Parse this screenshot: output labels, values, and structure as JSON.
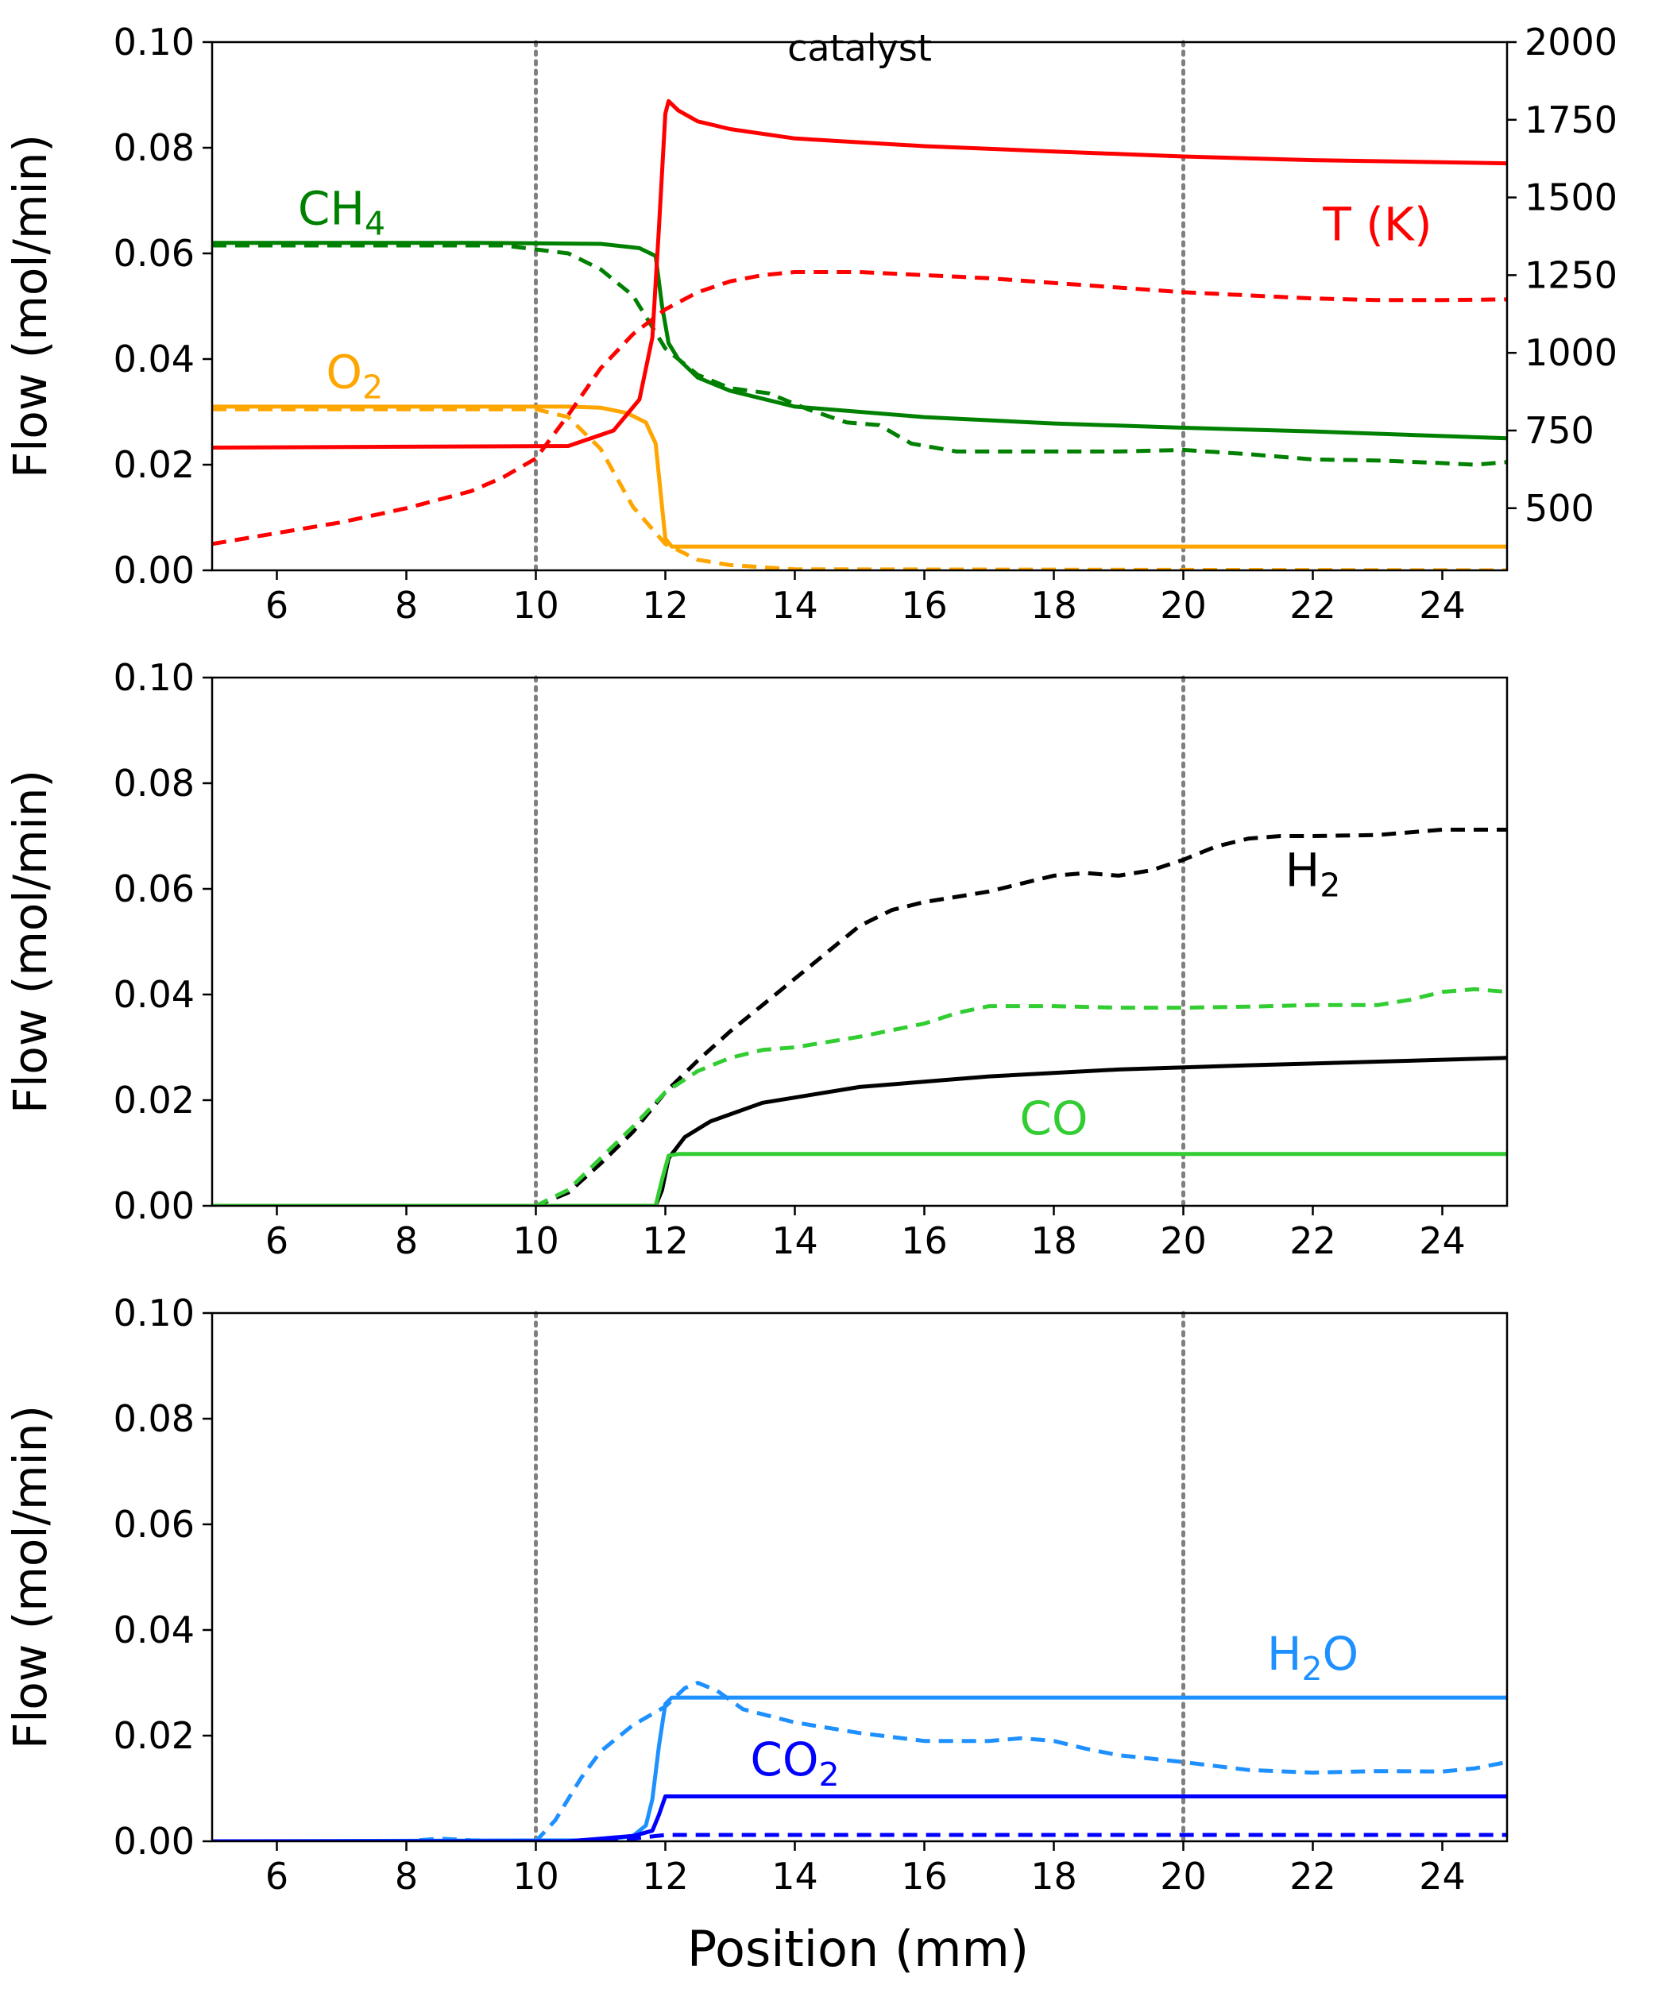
{
  "figure": {
    "xlabel": "Position (mm)",
    "ylabel": "Flow (mol/min)"
  },
  "chart_data": [
    {
      "type": "line",
      "panel": "top",
      "xlabel": "",
      "ylabel": "Flow (mol/min)",
      "xlim": [
        5,
        25
      ],
      "ylim": [
        0,
        0.1
      ],
      "xticks": [
        "6",
        "8",
        "10",
        "12",
        "14",
        "16",
        "18",
        "20",
        "22",
        "24"
      ],
      "yticks": [
        "0.00",
        "0.02",
        "0.04",
        "0.06",
        "0.08",
        "0.10"
      ],
      "y2lim": [
        300,
        2000
      ],
      "y2ticks": [
        "500",
        "750",
        "1000",
        "1250",
        "1500",
        "1750",
        "2000"
      ],
      "vlines": [
        10,
        20
      ],
      "annotations": {
        "catalyst": "catalyst",
        "ch4": {
          "base": "CH",
          "sub": "4",
          "color": "#008000"
        },
        "o2": {
          "base": "O",
          "sub": "2",
          "color": "#FFA500"
        },
        "temp": {
          "base": "T (K)",
          "sub": "",
          "color": "#FF0000"
        }
      },
      "series": [
        {
          "color": "#008000",
          "dash": false,
          "axis": "left",
          "x": [
            5,
            9,
            11,
            11.6,
            11.85,
            11.95,
            12.05,
            12.2,
            12.5,
            13,
            14,
            16,
            18,
            20,
            22,
            25
          ],
          "y": [
            0.062,
            0.062,
            0.0618,
            0.061,
            0.0595,
            0.05,
            0.043,
            0.04,
            0.0365,
            0.034,
            0.031,
            0.029,
            0.0278,
            0.027,
            0.0263,
            0.025
          ]
        },
        {
          "color": "#008000",
          "dash": true,
          "axis": "left",
          "x": [
            5,
            9.5,
            10.5,
            11,
            11.5,
            12,
            12.5,
            13,
            13.6,
            14.2,
            14.8,
            15.3,
            15.8,
            16.5,
            17.5,
            19,
            20,
            21,
            22,
            23,
            24,
            24.5,
            25
          ],
          "y": [
            0.0615,
            0.0615,
            0.06,
            0.057,
            0.052,
            0.042,
            0.037,
            0.0345,
            0.0335,
            0.0305,
            0.028,
            0.0275,
            0.024,
            0.0225,
            0.0225,
            0.0225,
            0.0228,
            0.022,
            0.021,
            0.0208,
            0.0203,
            0.02,
            0.0205
          ]
        },
        {
          "color": "#FFA500",
          "dash": false,
          "axis": "left",
          "x": [
            5,
            10.5,
            11,
            11.4,
            11.7,
            11.85,
            11.95,
            12,
            12.1,
            25
          ],
          "y": [
            0.031,
            0.031,
            0.0308,
            0.0298,
            0.028,
            0.024,
            0.012,
            0.006,
            0.0045,
            0.0045
          ]
        },
        {
          "color": "#FFA500",
          "dash": true,
          "axis": "left",
          "x": [
            5,
            10,
            10.5,
            11,
            11.5,
            12,
            12.5,
            13,
            14,
            25
          ],
          "y": [
            0.0305,
            0.0305,
            0.029,
            0.023,
            0.012,
            0.005,
            0.002,
            0.001,
            0.0002,
            0.0
          ]
        },
        {
          "color": "#FF0000",
          "dash": false,
          "axis": "right",
          "x": [
            5,
            10.5,
            11.2,
            11.6,
            11.8,
            11.9,
            12.0,
            12.05,
            12.2,
            12.5,
            13,
            14,
            16,
            18,
            20,
            22,
            25
          ],
          "y": [
            695,
            700,
            750,
            850,
            1050,
            1400,
            1770,
            1810,
            1780,
            1745,
            1720,
            1690,
            1665,
            1648,
            1632,
            1620,
            1610
          ]
        },
        {
          "color": "#FF0000",
          "dash": true,
          "axis": "right",
          "x": [
            5,
            6,
            7,
            8,
            9,
            9.5,
            10,
            10.5,
            11,
            11.5,
            12,
            12.5,
            13,
            13.5,
            14,
            15,
            16,
            17,
            18,
            19,
            20,
            21,
            22,
            23,
            24,
            25
          ],
          "y": [
            385,
            420,
            455,
            500,
            555,
            600,
            660,
            800,
            950,
            1060,
            1140,
            1195,
            1230,
            1250,
            1260,
            1260,
            1250,
            1240,
            1225,
            1210,
            1195,
            1185,
            1175,
            1170,
            1170,
            1172
          ]
        }
      ]
    },
    {
      "type": "line",
      "panel": "middle",
      "xlabel": "",
      "ylabel": "Flow (mol/min)",
      "xlim": [
        5,
        25
      ],
      "ylim": [
        0,
        0.1
      ],
      "xticks": [
        "6",
        "8",
        "10",
        "12",
        "14",
        "16",
        "18",
        "20",
        "22",
        "24"
      ],
      "yticks": [
        "0.00",
        "0.02",
        "0.04",
        "0.06",
        "0.08",
        "0.10"
      ],
      "vlines": [
        10,
        20
      ],
      "annotations": {
        "h2": {
          "base": "H",
          "sub": "2",
          "color": "#000000"
        },
        "co": {
          "base": "CO",
          "sub": "",
          "color": "#32CD32"
        }
      },
      "series": [
        {
          "color": "#000000",
          "dash": false,
          "x": [
            5,
            11.85,
            11.95,
            12.05,
            12.3,
            12.7,
            13.5,
            15,
            17,
            19,
            21,
            23,
            25
          ],
          "y": [
            0,
            0,
            0.003,
            0.009,
            0.013,
            0.016,
            0.0195,
            0.0225,
            0.0245,
            0.0258,
            0.0266,
            0.0273,
            0.028
          ]
        },
        {
          "color": "#000000",
          "dash": true,
          "x": [
            5,
            10,
            10.5,
            11,
            11.5,
            12,
            12.5,
            13,
            13.5,
            14,
            14.5,
            15,
            15.5,
            16,
            16.5,
            17,
            17.5,
            18,
            18.5,
            19,
            19.5,
            20,
            20.5,
            21,
            21.5,
            22,
            23,
            24,
            25
          ],
          "y": [
            0,
            0,
            0.0025,
            0.008,
            0.014,
            0.0215,
            0.0275,
            0.033,
            0.038,
            0.043,
            0.048,
            0.053,
            0.056,
            0.0575,
            0.0585,
            0.0595,
            0.061,
            0.0625,
            0.063,
            0.0625,
            0.0635,
            0.0655,
            0.068,
            0.0695,
            0.07,
            0.07,
            0.0702,
            0.0712,
            0.0712
          ]
        },
        {
          "color": "#32CD32",
          "dash": false,
          "x": [
            5,
            11.85,
            11.95,
            12.05,
            12.2,
            25
          ],
          "y": [
            0,
            0,
            0.005,
            0.0095,
            0.0098,
            0.0098
          ]
        },
        {
          "color": "#32CD32",
          "dash": true,
          "x": [
            5,
            10,
            10.5,
            11,
            11.5,
            12,
            12.5,
            13,
            13.5,
            14,
            15,
            16,
            16.5,
            17,
            18,
            19,
            20,
            21,
            22,
            23,
            23.5,
            24,
            24.5,
            25
          ],
          "y": [
            0,
            0,
            0.003,
            0.009,
            0.015,
            0.0215,
            0.0255,
            0.028,
            0.0295,
            0.03,
            0.032,
            0.0345,
            0.0365,
            0.0378,
            0.0378,
            0.0375,
            0.0375,
            0.0377,
            0.038,
            0.038,
            0.039,
            0.0405,
            0.041,
            0.0405
          ]
        }
      ]
    },
    {
      "type": "line",
      "panel": "bottom",
      "xlabel": "Position (mm)",
      "ylabel": "Flow (mol/min)",
      "xlim": [
        5,
        25
      ],
      "ylim": [
        0,
        0.1
      ],
      "xticks": [
        "6",
        "8",
        "10",
        "12",
        "14",
        "16",
        "18",
        "20",
        "22",
        "24"
      ],
      "yticks": [
        "0.00",
        "0.02",
        "0.04",
        "0.06",
        "0.08",
        "0.10"
      ],
      "vlines": [
        10,
        20
      ],
      "annotations": {
        "h2o": {
          "base": "H",
          "sub": "2",
          "tail": "O",
          "color": "#1E90FF"
        },
        "co2": {
          "base": "CO",
          "sub": "2",
          "color": "#0000FF"
        }
      },
      "series": [
        {
          "color": "#1E90FF",
          "dash": false,
          "x": [
            5,
            11,
            11.5,
            11.7,
            11.8,
            11.9,
            12.0,
            12.1,
            25
          ],
          "y": [
            0,
            0.0002,
            0.001,
            0.003,
            0.008,
            0.018,
            0.026,
            0.0272,
            0.0272
          ]
        },
        {
          "color": "#1E90FF",
          "dash": true,
          "x": [
            5,
            8,
            8.5,
            9,
            10,
            10.3,
            10.7,
            11,
            11.5,
            12,
            12.3,
            12.5,
            12.8,
            13.2,
            14,
            15,
            16,
            17,
            17.5,
            18,
            18.5,
            19,
            20,
            21,
            22,
            23,
            24,
            24.5,
            25
          ],
          "y": [
            0,
            0,
            0.0005,
            0.0002,
            0,
            0.004,
            0.012,
            0.017,
            0.022,
            0.0255,
            0.029,
            0.03,
            0.0285,
            0.025,
            0.0225,
            0.0205,
            0.019,
            0.019,
            0.0195,
            0.019,
            0.0175,
            0.0163,
            0.015,
            0.0135,
            0.013,
            0.0133,
            0.0132,
            0.0138,
            0.015
          ]
        },
        {
          "color": "#0000FF",
          "dash": false,
          "x": [
            5,
            10.5,
            11.5,
            11.8,
            11.9,
            12.0,
            12.1,
            25
          ],
          "y": [
            0,
            0,
            0.001,
            0.002,
            0.005,
            0.0085,
            0.0085,
            0.0085
          ]
        },
        {
          "color": "#0000FF",
          "dash": true,
          "x": [
            5,
            10.5,
            11.5,
            12,
            25
          ],
          "y": [
            0,
            0,
            0.0005,
            0.0012,
            0.0012
          ]
        }
      ]
    }
  ]
}
